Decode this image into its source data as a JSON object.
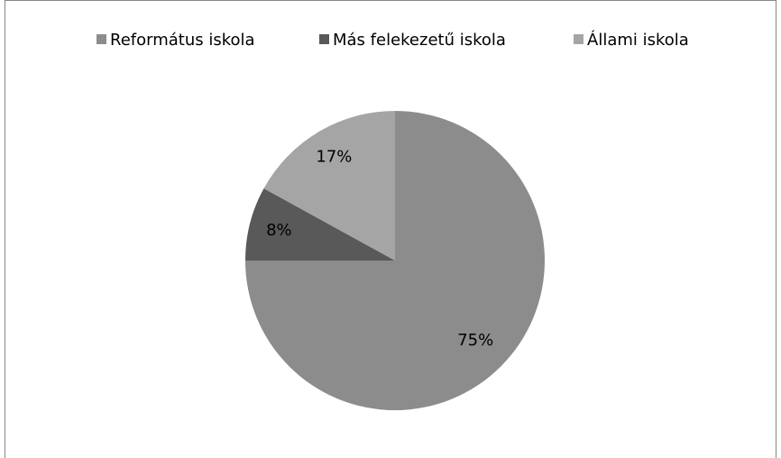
{
  "chart_data": {
    "type": "pie",
    "categories": [
      "Református iskola",
      "Más felekezetű iskola",
      "Állami iskola"
    ],
    "values": [
      75,
      8,
      17
    ],
    "value_labels": [
      "75%",
      "8%",
      "17%"
    ],
    "colors": [
      "#8c8c8c",
      "#595959",
      "#a5a5a5"
    ],
    "legend": "top"
  }
}
